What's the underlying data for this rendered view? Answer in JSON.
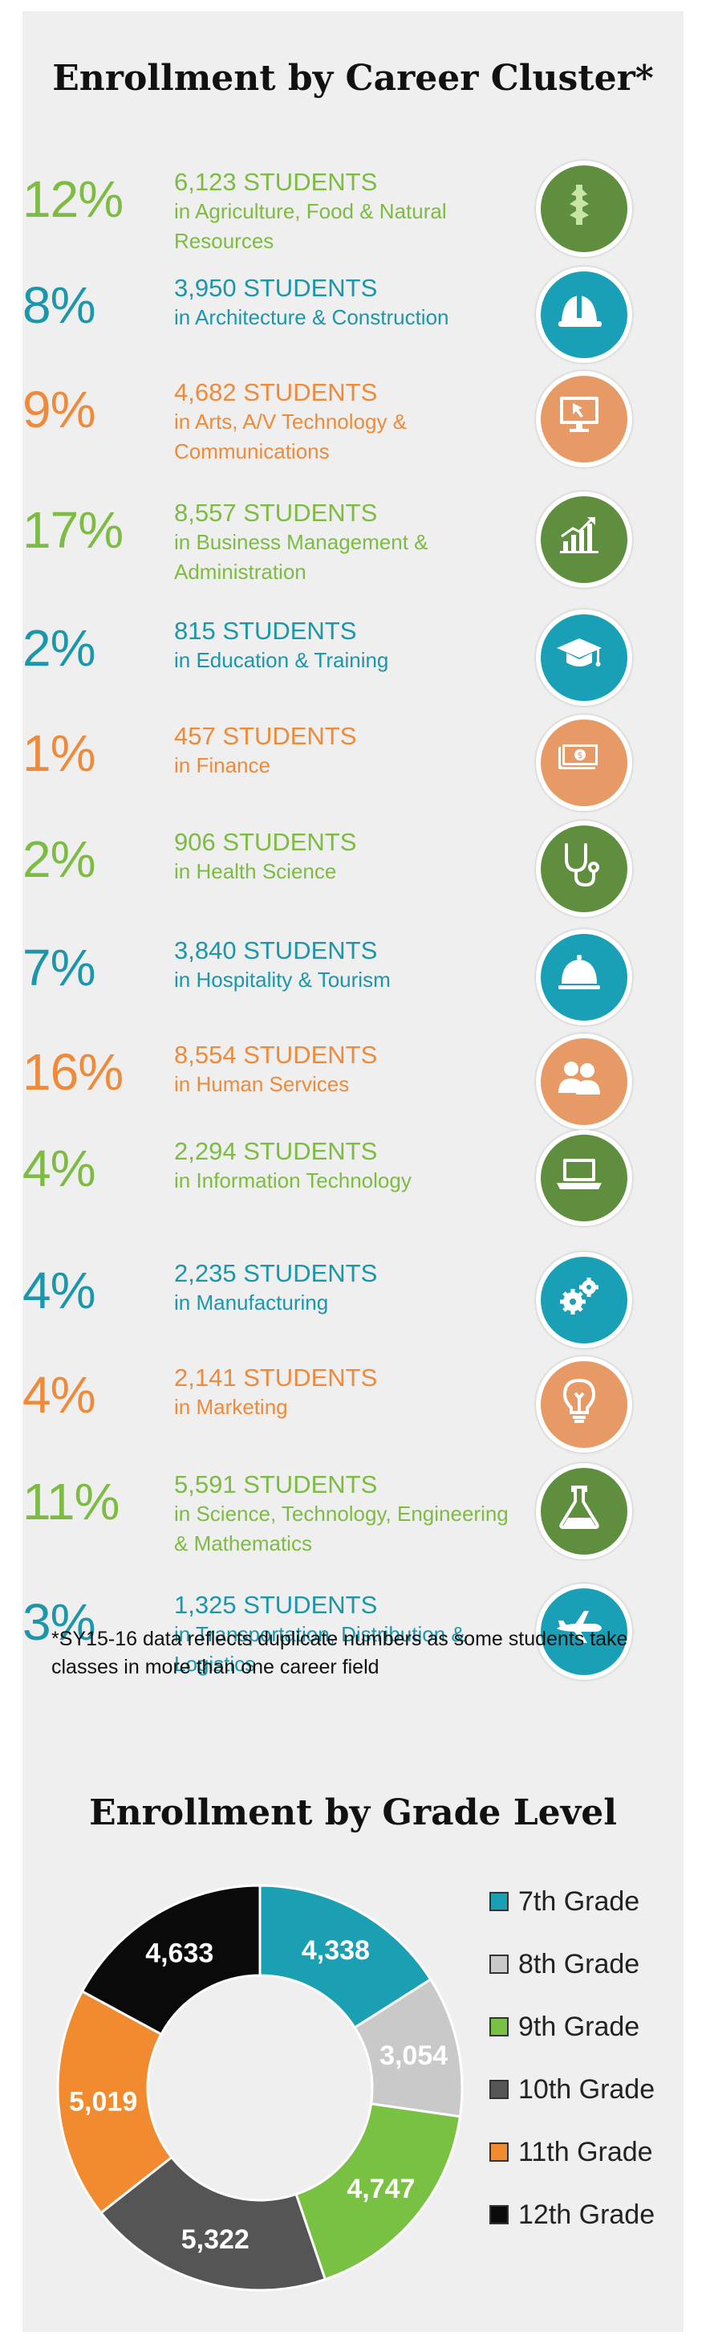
{
  "title": "Enrollment by Career Cluster*",
  "clusters": [
    {
      "pct": "12%",
      "count": "6,123 STUDENTS",
      "desc": "in Agriculture, Food & Natural Resources",
      "icon": "wheat-icon",
      "color": "green"
    },
    {
      "pct": "8%",
      "count": "3,950 STUDENTS",
      "desc": "in Architecture & Construction",
      "icon": "hard-hat-icon",
      "color": "teal"
    },
    {
      "pct": "9%",
      "count": "4,682 STUDENTS",
      "desc": "in Arts, A/V Technology & Communications",
      "icon": "monitor-cursor-icon",
      "color": "orange"
    },
    {
      "pct": "17%",
      "count": "8,557 STUDENTS",
      "desc": "in Business Management & Administration",
      "icon": "bar-chart-icon",
      "color": "green"
    },
    {
      "pct": "2%",
      "count": "815 STUDENTS",
      "desc": "in Education & Training",
      "icon": "graduation-cap-icon",
      "color": "teal"
    },
    {
      "pct": "1%",
      "count": "457 STUDENTS",
      "desc": "in Finance",
      "icon": "money-icon",
      "color": "orange"
    },
    {
      "pct": "2%",
      "count": "906 STUDENTS",
      "desc": "in Health Science",
      "icon": "stethoscope-icon",
      "color": "green"
    },
    {
      "pct": "7%",
      "count": "3,840 STUDENTS",
      "desc": "in Hospitality & Tourism",
      "icon": "service-bell-icon",
      "color": "teal"
    },
    {
      "pct": "16%",
      "count": "8,554 STUDENTS",
      "desc": "in Human Services",
      "icon": "people-icon",
      "color": "orange"
    },
    {
      "pct": "4%",
      "count": "2,294 STUDENTS",
      "desc": "in Information Technology",
      "icon": "laptop-icon",
      "color": "green"
    },
    {
      "pct": "4%",
      "count": "2,235 STUDENTS",
      "desc": "in Manufacturing",
      "icon": "gears-icon",
      "color": "teal"
    },
    {
      "pct": "4%",
      "count": "2,141 STUDENTS",
      "desc": "in Marketing",
      "icon": "lightbulb-icon",
      "color": "orange"
    },
    {
      "pct": "11%",
      "count": "5,591 STUDENTS",
      "desc": "in Science, Technology, Engineering & Mathematics",
      "icon": "flask-icon",
      "color": "green"
    },
    {
      "pct": "3%",
      "count": "1,325 STUDENTS",
      "desc": "in Transportation, Distribution & Logistics",
      "icon": "airplane-icon",
      "color": "teal"
    }
  ],
  "footnote": "*SY15-16 data reflects duplicate numbers as some students take classes in more than one career field",
  "chart_data": {
    "type": "pie",
    "title": "Enrollment by Grade Level",
    "donut": true,
    "categories": [
      "7th Grade",
      "8th Grade",
      "9th Grade",
      "10th Grade",
      "11th Grade",
      "12th Grade"
    ],
    "values": [
      4338,
      3054,
      4747,
      5322,
      5019,
      4633
    ],
    "value_labels": [
      "4,338",
      "3,054",
      "4,747",
      "5,322",
      "5,019",
      "4,633"
    ],
    "colors": [
      "#1a9fb3",
      "#c9c9c9",
      "#79c143",
      "#555555",
      "#f28a30",
      "#0a0a0a"
    ],
    "legend": "right"
  }
}
